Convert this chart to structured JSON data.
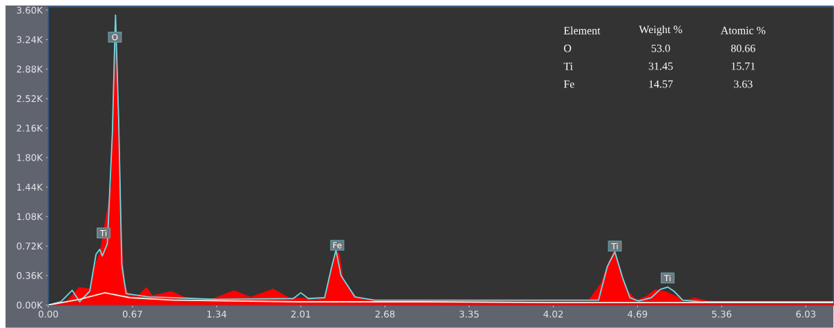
{
  "chart_data": {
    "type": "area",
    "xlim": [
      0,
      6.25
    ],
    "ylim": [
      0,
      3640
    ],
    "xticks": [
      {
        "value": 0,
        "label": "0.00"
      },
      0.67,
      1.34,
      2.01,
      2.68,
      3.35,
      4.02,
      4.69,
      5.36,
      6.03
    ],
    "yticks": [
      {
        "value": 0,
        "label": "0.00K"
      },
      {
        "value": 360,
        "label": "0.36K"
      },
      {
        "value": 720,
        "label": "0.72K"
      },
      {
        "value": 1080,
        "label": "1.08K"
      },
      {
        "value": 1440,
        "label": "1.44K"
      },
      {
        "value": 1800,
        "label": "1.80K"
      },
      {
        "value": 2160,
        "label": "2.16K"
      },
      {
        "value": 2520,
        "label": "2.52K"
      },
      {
        "value": 2880,
        "label": "2.88K"
      },
      {
        "value": 3240,
        "label": "3.24K"
      },
      {
        "value": 3600,
        "label": "3.60K"
      }
    ],
    "series": [
      {
        "color": "#ff0000",
        "x": [
          0,
          0.14,
          0.245,
          0.33,
          0.37,
          0.41,
          0.5,
          0.52,
          0.534,
          0.56,
          0.584,
          0.61,
          0.64,
          0.705,
          0.78,
          0.83,
          0.98,
          1.08,
          1.29,
          1.48,
          1.61,
          1.79,
          1.92,
          2.01,
          2.13,
          2.21,
          2.255,
          2.29,
          2.32,
          2.35,
          2.4,
          2.46,
          2.65,
          3.35,
          4.3,
          4.4,
          4.45,
          4.5,
          4.55,
          4.6,
          4.68,
          4.76,
          4.83,
          4.91,
          5.0,
          5.06,
          5.15,
          5.25,
          6.25
        ],
        "values": [
          0,
          40,
          220,
          200,
          490,
          650,
          1460,
          3070,
          3450,
          2430,
          810,
          230,
          140,
          100,
          220,
          120,
          170,
          100,
          70,
          180,
          100,
          200,
          90,
          90,
          70,
          100,
          490,
          680,
          620,
          300,
          200,
          90,
          60,
          60,
          60,
          270,
          500,
          660,
          470,
          200,
          60,
          110,
          190,
          170,
          110,
          60,
          90,
          50,
          50
        ]
      },
      {
        "type": "line",
        "color": "#6fd8e4",
        "x": [
          0,
          0.1,
          0.19,
          0.25,
          0.33,
          0.38,
          0.41,
          0.43,
          0.47,
          0.51,
          0.535,
          0.56,
          0.585,
          0.62,
          0.8,
          1.34,
          1.95,
          2.01,
          2.07,
          2.2,
          2.25,
          2.29,
          2.33,
          2.39,
          2.44,
          2.6,
          2.8,
          3.5,
          4.38,
          4.45,
          4.51,
          4.57,
          4.63,
          4.7,
          4.8,
          4.87,
          4.93,
          4.98,
          5.05,
          5.2,
          6.25
        ],
        "values": [
          0,
          40,
          180,
          40,
          170,
          620,
          680,
          600,
          750,
          2100,
          3540,
          2270,
          490,
          140,
          100,
          70,
          80,
          150,
          80,
          90,
          430,
          670,
          360,
          220,
          100,
          60,
          60,
          60,
          60,
          470,
          650,
          340,
          90,
          50,
          90,
          190,
          220,
          170,
          60,
          40,
          40
        ]
      },
      {
        "type": "line",
        "color": "#f4f1e4",
        "x": [
          0,
          0.25,
          0.45,
          0.65,
          1.0,
          2.0,
          3.0,
          4.0,
          6.25
        ],
        "values": [
          0,
          70,
          150,
          90,
          60,
          40,
          40,
          30,
          30
        ]
      }
    ],
    "annotations": [
      {
        "text": "O",
        "x": 0.53,
        "y": 3270
      },
      {
        "text": "Ti",
        "x": 0.44,
        "y": 880
      },
      {
        "text": "Fe",
        "x": 2.3,
        "y": 730
      },
      {
        "text": "Ti",
        "x": 4.51,
        "y": 720
      },
      {
        "text": "Ti",
        "x": 4.93,
        "y": 330
      },
      "Element",
      "Weight %",
      "Atomic %",
      "O",
      "53.0",
      "80.66",
      "Ti",
      "31.45",
      "15.71",
      "Fe",
      "14.57",
      "3.63"
    ]
  }
}
